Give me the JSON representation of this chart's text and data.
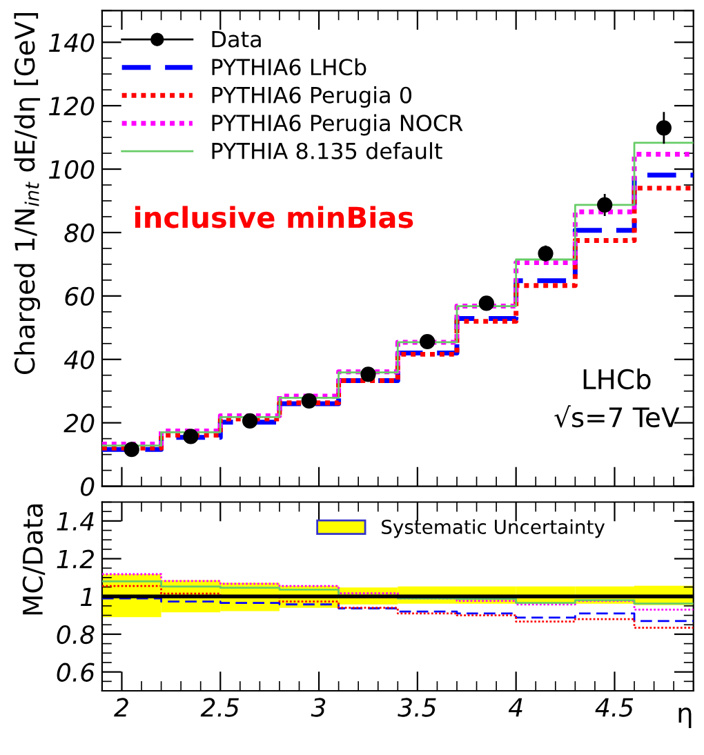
{
  "chart_data": [
    {
      "type": "histogram",
      "ylabel": "Charged 1/N$_{int}$ dE/dη [GeV]",
      "bins": [
        1.9,
        2.2,
        2.5,
        2.8,
        3.1,
        3.4,
        3.7,
        4.0,
        4.3,
        4.6,
        4.9
      ],
      "xlim": [
        1.9,
        4.9
      ],
      "xticks": [
        2,
        2.5,
        3,
        3.5,
        4,
        4.5
      ],
      "ylim": [
        0,
        150
      ],
      "yticks": [
        0,
        20,
        40,
        60,
        80,
        100,
        120,
        140
      ],
      "tick_labels": "y",
      "legend": "top left",
      "series": [
        {
          "name": "Data",
          "type": "scatter",
          "marker": "circle",
          "color": "#000000",
          "x": [
            2.05,
            2.35,
            2.65,
            2.95,
            3.25,
            3.55,
            3.85,
            4.15,
            4.45,
            4.75
          ],
          "values": [
            11.6,
            15.7,
            20.6,
            26.9,
            35.3,
            45.6,
            57.7,
            73.4,
            88.7,
            113
          ],
          "errors": [
            1,
            1,
            1,
            1,
            1.2,
            1.5,
            2,
            2.5,
            3.5,
            5
          ]
        },
        {
          "name": "PYTHIA6 LHCb",
          "line_style": "dashed",
          "color": "#0000ff",
          "values": [
            11.6,
            15.4,
            20.2,
            26.0,
            33.3,
            42.0,
            52.9,
            64.8,
            80.7,
            98.1
          ]
        },
        {
          "name": "PYTHIA6 Perugia 0",
          "line_style": "dotted",
          "color": "#ff0000",
          "values": [
            12.0,
            16.1,
            21.2,
            26.3,
            33.3,
            41.6,
            52.0,
            63.3,
            77.5,
            94.0
          ]
        },
        {
          "name": "PYTHIA6 Perugia NOCR",
          "line_style": "dotted",
          "color": "#ff00ff",
          "values": [
            13.3,
            17.4,
            22.2,
            28.4,
            36.1,
            45.4,
            56.8,
            70.5,
            86.5,
            104.7
          ]
        },
        {
          "name": "PYTHIA 8.135 default",
          "line_style": "solid",
          "color": "#66cc66",
          "values": [
            12.8,
            17.0,
            21.8,
            27.9,
            35.9,
            45.4,
            56.8,
            71.5,
            88.7,
            108.3
          ]
        }
      ],
      "annotations": [
        "inclusive minBias",
        "LHCb",
        "√s=7 TeV"
      ]
    },
    {
      "type": "histogram",
      "ylabel": "MC/Data",
      "xlabel": "η",
      "bins": [
        1.9,
        2.2,
        2.5,
        2.8,
        3.1,
        3.4,
        3.7,
        4.0,
        4.3,
        4.6,
        4.9
      ],
      "xlim": [
        1.9,
        4.9
      ],
      "xticks": [
        2,
        2.5,
        3,
        3.5,
        4,
        4.5
      ],
      "ylim": [
        0.5,
        1.5
      ],
      "yticks": [
        0.6,
        0.8,
        1,
        1.2,
        1.4
      ],
      "legend": "top right",
      "ref_lines": [
        {
          "axis": "y",
          "value": 1,
          "color": "#000000"
        }
      ],
      "series": [
        {
          "name": "Systematic Uncertainty",
          "type": "bar",
          "color": "#ffff00",
          "x": [
            2.05,
            2.35,
            2.65,
            2.95,
            3.25,
            3.55,
            3.85,
            4.15,
            4.45,
            4.75
          ],
          "base": [
            0.89,
            0.916,
            0.922,
            0.94,
            0.958,
            0.962,
            0.962,
            0.962,
            0.962,
            0.954
          ],
          "values": [
            0.228,
            0.17,
            0.15,
            0.117,
            0.09,
            0.091,
            0.091,
            0.091,
            0.091,
            0.103
          ]
        },
        {
          "line_style": "dashed",
          "color": "#0000ff",
          "values": [
            0.99,
            0.973,
            0.966,
            0.958,
            0.937,
            0.92,
            0.91,
            0.888,
            0.91,
            0.87
          ]
        },
        {
          "line_style": "dotted",
          "color": "#ff0000",
          "values": [
            1.055,
            1.015,
            1.0,
            0.973,
            0.94,
            0.91,
            0.9,
            0.867,
            0.88,
            0.834
          ]
        },
        {
          "line_style": "dotted",
          "color": "#ff00ff",
          "values": [
            1.118,
            1.082,
            1.067,
            1.055,
            1.017,
            0.99,
            0.977,
            0.958,
            0.977,
            0.93
          ]
        },
        {
          "line_style": "solid",
          "color": "#66cc66",
          "values": [
            1.08,
            1.053,
            1.046,
            1.036,
            1.004,
            0.99,
            0.987,
            0.966,
            0.98,
            0.962
          ]
        }
      ]
    }
  ]
}
